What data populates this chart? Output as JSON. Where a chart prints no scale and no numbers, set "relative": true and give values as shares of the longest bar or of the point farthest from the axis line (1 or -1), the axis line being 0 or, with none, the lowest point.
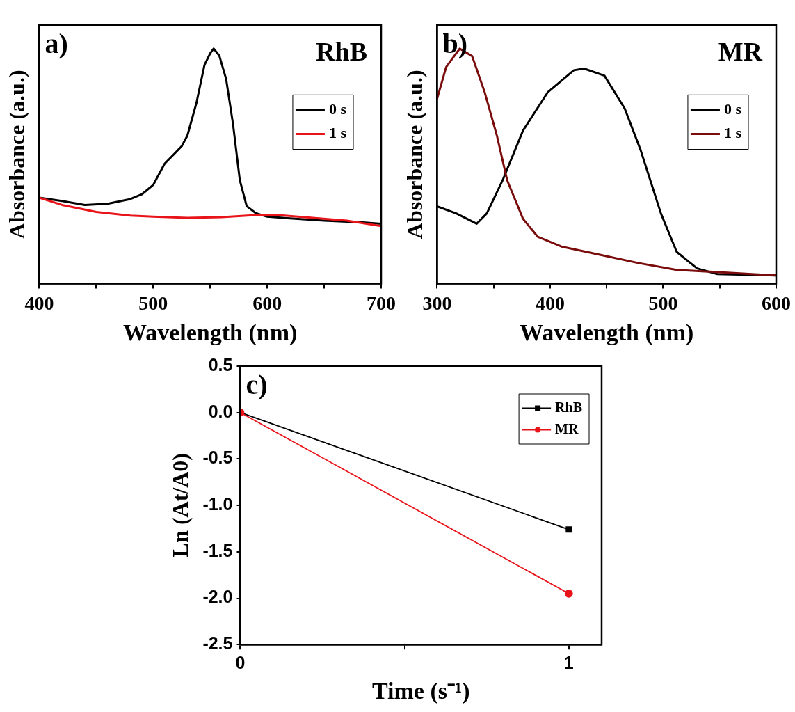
{
  "chart_data": [
    {
      "type": "line",
      "relative": true,
      "xlabel": "Wavelength (nm)",
      "ylabel": "Absorbance (a.u.)",
      "annotations": [
        "a)",
        "RhB"
      ],
      "xlim": [
        400,
        700
      ],
      "xticks": [
        400,
        {
          "value": 450,
          "label": null
        },
        500,
        {
          "value": 550,
          "label": null
        },
        600,
        {
          "value": 650,
          "label": null
        },
        700
      ],
      "legend": "right",
      "marker": "none",
      "line_style": "solid",
      "series": [
        {
          "name": "0 s",
          "color": "#000000",
          "x": [
            400,
            420,
            440,
            460,
            480,
            490,
            500,
            510,
            520,
            525,
            530,
            538,
            545,
            550,
            553,
            558,
            564,
            570,
            576,
            582,
            590,
            600,
            620,
            650,
            680,
            700
          ],
          "values": [
            0.366,
            0.352,
            0.335,
            0.34,
            0.36,
            0.38,
            0.42,
            0.51,
            0.56,
            0.585,
            0.63,
            0.77,
            0.93,
            0.98,
            1,
            0.97,
            0.87,
            0.68,
            0.44,
            0.33,
            0.3,
            0.285,
            0.278,
            0.268,
            0.262,
            0.255
          ]
        },
        {
          "name": "1 s",
          "color": "#e8141a",
          "x": [
            400,
            420,
            450,
            480,
            500,
            530,
            560,
            590,
            610,
            640,
            670,
            700
          ],
          "values": [
            0.366,
            0.335,
            0.305,
            0.29,
            0.285,
            0.28,
            0.283,
            0.292,
            0.292,
            0.28,
            0.268,
            0.245
          ]
        }
      ]
    },
    {
      "type": "line",
      "relative": true,
      "xlabel": "Wavelength (nm)",
      "ylabel": "Absorbance (a.u.)",
      "annotations": [
        "b)",
        "MR"
      ],
      "xlim": [
        300,
        600
      ],
      "xticks": [
        300,
        {
          "value": 350,
          "label": null
        },
        400,
        {
          "value": 450,
          "label": null
        },
        500,
        {
          "value": 550,
          "label": null
        },
        600
      ],
      "legend": "right",
      "marker": "none",
      "line_style": "solid",
      "series": [
        {
          "name": "0 s",
          "color": "#000000",
          "x": [
            300,
            317,
            335,
            344,
            358,
            376,
            398,
            421,
            430,
            448,
            466,
            480,
            498,
            512,
            530,
            548,
            600
          ],
          "values": [
            0.329,
            0.299,
            0.255,
            0.299,
            0.44,
            0.651,
            0.815,
            0.908,
            0.915,
            0.885,
            0.745,
            0.569,
            0.299,
            0.135,
            0.065,
            0.041,
            0.035
          ]
        },
        {
          "name": "1 s",
          "color": "#7a0c0c",
          "x": [
            300,
            308,
            320,
            331,
            342,
            353,
            362,
            376,
            389,
            410,
            444,
            478,
            512,
            557,
            600
          ],
          "values": [
            0.786,
            0.921,
            1,
            0.968,
            0.816,
            0.628,
            0.44,
            0.276,
            0.2,
            0.158,
            0.123,
            0.088,
            0.059,
            0.047,
            0.035
          ]
        }
      ]
    },
    {
      "type": "line",
      "xlabel": "Time (s⁻¹)",
      "ylabel": "Ln (At/A0)",
      "annotations": [
        "c)"
      ],
      "xlim": [
        0,
        1.1
      ],
      "xticks": [
        0,
        {
          "value": 0.5,
          "label": null
        },
        1
      ],
      "ylim": [
        -2.5,
        0.5
      ],
      "yticks": [
        -2.5,
        {
          "value": -2,
          "label": "-2.0"
        },
        -1.5,
        {
          "value": -1,
          "label": "-1.0"
        },
        -0.5,
        {
          "value": 0,
          "label": "0.0"
        },
        0.5
      ],
      "legend": "top right",
      "line_style": "solid",
      "series": [
        {
          "name": "RhB",
          "color": "#000000",
          "marker": "square",
          "x": [
            0,
            1
          ],
          "values": [
            0,
            -1.26
          ]
        },
        {
          "name": "MR",
          "color": "#e8141a",
          "marker": "circle",
          "x": [
            0,
            1
          ],
          "values": [
            0,
            -1.95
          ]
        }
      ]
    }
  ]
}
